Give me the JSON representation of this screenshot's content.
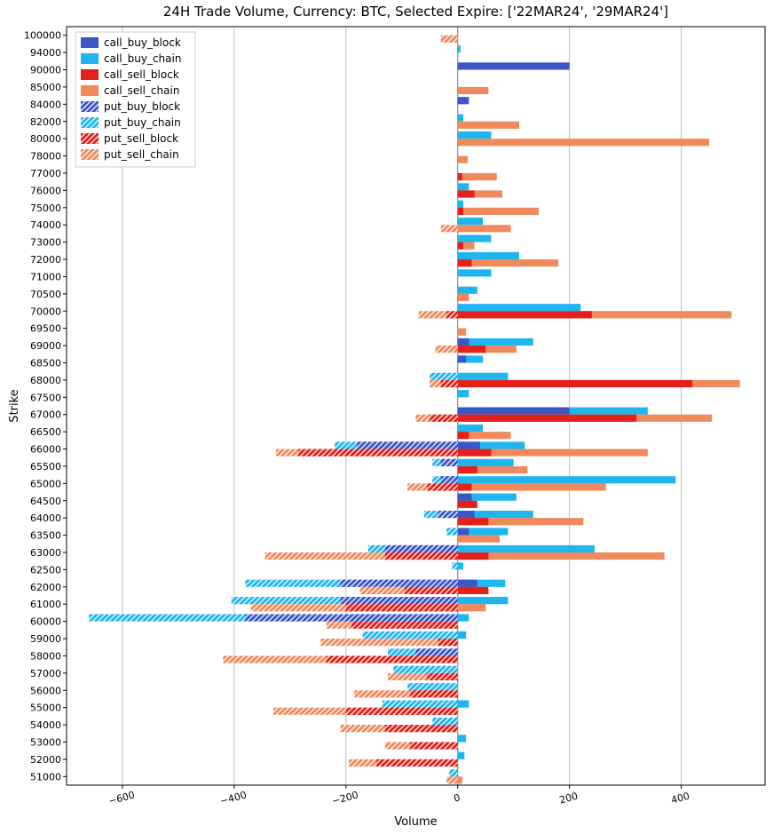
{
  "chart": {
    "type": "bar",
    "title": "24H Trade Volume, Currency: BTC, Selected Expire: ['22MAR24', '29MAR24']",
    "title_fontsize": 15,
    "xlabel": "Volume",
    "ylabel": "Strike",
    "label_fontsize": 13,
    "tick_fontsize": 11,
    "xlim": [
      -700,
      550
    ],
    "xtick_step": 200,
    "xticks": [
      -600,
      -400,
      -200,
      0,
      200,
      400
    ],
    "background_color": "#ffffff",
    "grid_color": "#b0b0b0",
    "bar_group_height": 20,
    "bar_sub_height": 9,
    "colors": {
      "call_buy_block": "#3b57c7",
      "call_buy_chain": "#1fb6f0",
      "call_sell_block": "#e3201b",
      "call_sell_chain": "#f08a5d",
      "put_buy_block": "#3b57c7",
      "put_buy_chain": "#1fb6f0",
      "put_sell_block": "#e3201b",
      "put_sell_chain": "#f08a5d",
      "hatch_stroke": "#ffffff"
    },
    "legend": {
      "items": [
        {
          "label": "call_buy_block",
          "fill": "#3b57c7",
          "hatched": false
        },
        {
          "label": "call_buy_chain",
          "fill": "#1fb6f0",
          "hatched": false
        },
        {
          "label": "call_sell_block",
          "fill": "#e3201b",
          "hatched": false
        },
        {
          "label": "call_sell_chain",
          "fill": "#f08a5d",
          "hatched": false
        },
        {
          "label": "put_buy_block",
          "fill": "#3b57c7",
          "hatched": true
        },
        {
          "label": "put_buy_chain",
          "fill": "#1fb6f0",
          "hatched": true
        },
        {
          "label": "put_sell_block",
          "fill": "#e3201b",
          "hatched": true
        },
        {
          "label": "put_sell_chain",
          "fill": "#f08a5d",
          "hatched": true
        }
      ]
    },
    "comment_series": "Per strike: call_buy [block,chain], call_sell [block,chain] on +x; put_buy [block,chain], put_sell [block,chain] on -x (given as positive magnitudes, rendered negative). Top sub-row = buy, bottom sub-row = sell.",
    "strikes": [
      {
        "strike": "100000",
        "call_buy": [
          0,
          0
        ],
        "call_sell": [
          0,
          0
        ],
        "put_buy": [
          0,
          0
        ],
        "put_sell": [
          0,
          30
        ]
      },
      {
        "strike": "94000",
        "call_buy": [
          0,
          5
        ],
        "call_sell": [
          0,
          0
        ],
        "put_buy": [
          0,
          0
        ],
        "put_sell": [
          0,
          0
        ]
      },
      {
        "strike": "90000",
        "call_buy": [
          200,
          20
        ],
        "call_sell": [
          0,
          0
        ],
        "put_buy": [
          0,
          0
        ],
        "put_sell": [
          0,
          0
        ]
      },
      {
        "strike": "85000",
        "call_buy": [
          0,
          0
        ],
        "call_sell": [
          0,
          55
        ],
        "put_buy": [
          0,
          0
        ],
        "put_sell": [
          0,
          0
        ]
      },
      {
        "strike": "84000",
        "call_buy": [
          20,
          0
        ],
        "call_sell": [
          0,
          0
        ],
        "put_buy": [
          0,
          0
        ],
        "put_sell": [
          0,
          0
        ]
      },
      {
        "strike": "82000",
        "call_buy": [
          0,
          10
        ],
        "call_sell": [
          0,
          110
        ],
        "put_buy": [
          0,
          0
        ],
        "put_sell": [
          0,
          0
        ]
      },
      {
        "strike": "80000",
        "call_buy": [
          0,
          60
        ],
        "call_sell": [
          0,
          450
        ],
        "put_buy": [
          0,
          0
        ],
        "put_sell": [
          0,
          0
        ]
      },
      {
        "strike": "78000",
        "call_buy": [
          0,
          0
        ],
        "call_sell": [
          0,
          18
        ],
        "put_buy": [
          0,
          0
        ],
        "put_sell": [
          0,
          0
        ]
      },
      {
        "strike": "77000",
        "call_buy": [
          0,
          0
        ],
        "call_sell": [
          8,
          70
        ],
        "put_buy": [
          0,
          0
        ],
        "put_sell": [
          0,
          0
        ]
      },
      {
        "strike": "76000",
        "call_buy": [
          0,
          20
        ],
        "call_sell": [
          30,
          80
        ],
        "put_buy": [
          0,
          0
        ],
        "put_sell": [
          0,
          0
        ]
      },
      {
        "strike": "75000",
        "call_buy": [
          0,
          10
        ],
        "call_sell": [
          10,
          145
        ],
        "put_buy": [
          0,
          0
        ],
        "put_sell": [
          0,
          0
        ]
      },
      {
        "strike": "74000",
        "call_buy": [
          0,
          45
        ],
        "call_sell": [
          0,
          95
        ],
        "put_buy": [
          0,
          0
        ],
        "put_sell": [
          0,
          30
        ]
      },
      {
        "strike": "73000",
        "call_buy": [
          0,
          60
        ],
        "call_sell": [
          10,
          30
        ],
        "put_buy": [
          0,
          0
        ],
        "put_sell": [
          0,
          0
        ]
      },
      {
        "strike": "72000",
        "call_buy": [
          0,
          110
        ],
        "call_sell": [
          25,
          180
        ],
        "put_buy": [
          0,
          0
        ],
        "put_sell": [
          0,
          0
        ]
      },
      {
        "strike": "71000",
        "call_buy": [
          0,
          60
        ],
        "call_sell": [
          0,
          0
        ],
        "put_buy": [
          0,
          0
        ],
        "put_sell": [
          0,
          0
        ]
      },
      {
        "strike": "70500",
        "call_buy": [
          0,
          35
        ],
        "call_sell": [
          0,
          20
        ],
        "put_buy": [
          0,
          0
        ],
        "put_sell": [
          0,
          0
        ]
      },
      {
        "strike": "70000",
        "call_buy": [
          0,
          220
        ],
        "call_sell": [
          240,
          490
        ],
        "put_buy": [
          0,
          0
        ],
        "put_sell": [
          20,
          70
        ]
      },
      {
        "strike": "69500",
        "call_buy": [
          0,
          0
        ],
        "call_sell": [
          0,
          15
        ],
        "put_buy": [
          0,
          0
        ],
        "put_sell": [
          0,
          0
        ]
      },
      {
        "strike": "69000",
        "call_buy": [
          20,
          135
        ],
        "call_sell": [
          50,
          105
        ],
        "put_buy": [
          0,
          0
        ],
        "put_sell": [
          0,
          40
        ]
      },
      {
        "strike": "68500",
        "call_buy": [
          15,
          45
        ],
        "call_sell": [
          0,
          0
        ],
        "put_buy": [
          0,
          0
        ],
        "put_sell": [
          0,
          0
        ]
      },
      {
        "strike": "68000",
        "call_buy": [
          0,
          90
        ],
        "call_sell": [
          420,
          505
        ],
        "put_buy": [
          0,
          50
        ],
        "put_sell": [
          30,
          50
        ]
      },
      {
        "strike": "67500",
        "call_buy": [
          0,
          20
        ],
        "call_sell": [
          0,
          0
        ],
        "put_buy": [
          0,
          0
        ],
        "put_sell": [
          0,
          0
        ]
      },
      {
        "strike": "67000",
        "call_buy": [
          200,
          340
        ],
        "call_sell": [
          320,
          455
        ],
        "put_buy": [
          0,
          0
        ],
        "put_sell": [
          50,
          75
        ]
      },
      {
        "strike": "66500",
        "call_buy": [
          0,
          45
        ],
        "call_sell": [
          20,
          95
        ],
        "put_buy": [
          0,
          0
        ],
        "put_sell": [
          0,
          0
        ]
      },
      {
        "strike": "66000",
        "call_buy": [
          40,
          120
        ],
        "call_sell": [
          60,
          340
        ],
        "put_buy": [
          180,
          220
        ],
        "put_sell": [
          285,
          325
        ]
      },
      {
        "strike": "65500",
        "call_buy": [
          0,
          100
        ],
        "call_sell": [
          35,
          125
        ],
        "put_buy": [
          30,
          45
        ],
        "put_sell": [
          0,
          0
        ]
      },
      {
        "strike": "65000",
        "call_buy": [
          0,
          390
        ],
        "call_sell": [
          25,
          265
        ],
        "put_buy": [
          30,
          45
        ],
        "put_sell": [
          55,
          90
        ]
      },
      {
        "strike": "64500",
        "call_buy": [
          25,
          105
        ],
        "call_sell": [
          35,
          0
        ],
        "put_buy": [
          0,
          0
        ],
        "put_sell": [
          0,
          0
        ]
      },
      {
        "strike": "64000",
        "call_buy": [
          30,
          135
        ],
        "call_sell": [
          55,
          225
        ],
        "put_buy": [
          35,
          60
        ],
        "put_sell": [
          0,
          0
        ]
      },
      {
        "strike": "63500",
        "call_buy": [
          20,
          90
        ],
        "call_sell": [
          0,
          75
        ],
        "put_buy": [
          0,
          20
        ],
        "put_sell": [
          0,
          0
        ]
      },
      {
        "strike": "63000",
        "call_buy": [
          0,
          245
        ],
        "call_sell": [
          55,
          370
        ],
        "put_buy": [
          130,
          160
        ],
        "put_sell": [
          130,
          345
        ]
      },
      {
        "strike": "62500",
        "call_buy": [
          0,
          10
        ],
        "call_sell": [
          0,
          0
        ],
        "put_buy": [
          0,
          10
        ],
        "put_sell": [
          0,
          0
        ]
      },
      {
        "strike": "62000",
        "call_buy": [
          35,
          85
        ],
        "call_sell": [
          55,
          0
        ],
        "put_buy": [
          210,
          380
        ],
        "put_sell": [
          95,
          175
        ]
      },
      {
        "strike": "61000",
        "call_buy": [
          0,
          90
        ],
        "call_sell": [
          0,
          50
        ],
        "put_buy": [
          210,
          405
        ],
        "put_sell": [
          200,
          370
        ]
      },
      {
        "strike": "60000",
        "call_buy": [
          0,
          20
        ],
        "call_sell": [
          0,
          0
        ],
        "put_buy": [
          380,
          660
        ],
        "put_sell": [
          190,
          235
        ]
      },
      {
        "strike": "59000",
        "call_buy": [
          0,
          15
        ],
        "call_sell": [
          0,
          0
        ],
        "put_buy": [
          0,
          170
        ],
        "put_sell": [
          35,
          245
        ]
      },
      {
        "strike": "58000",
        "call_buy": [
          0,
          0
        ],
        "call_sell": [
          0,
          0
        ],
        "put_buy": [
          75,
          125
        ],
        "put_sell": [
          235,
          420
        ]
      },
      {
        "strike": "57000",
        "call_buy": [
          0,
          0
        ],
        "call_sell": [
          0,
          0
        ],
        "put_buy": [
          0,
          115
        ],
        "put_sell": [
          55,
          125
        ]
      },
      {
        "strike": "56000",
        "call_buy": [
          0,
          0
        ],
        "call_sell": [
          0,
          0
        ],
        "put_buy": [
          0,
          90
        ],
        "put_sell": [
          85,
          185
        ]
      },
      {
        "strike": "55000",
        "call_buy": [
          0,
          20
        ],
        "call_sell": [
          0,
          0
        ],
        "put_buy": [
          0,
          135
        ],
        "put_sell": [
          200,
          330
        ]
      },
      {
        "strike": "54000",
        "call_buy": [
          0,
          0
        ],
        "call_sell": [
          0,
          0
        ],
        "put_buy": [
          0,
          45
        ],
        "put_sell": [
          130,
          210
        ]
      },
      {
        "strike": "53000",
        "call_buy": [
          0,
          15
        ],
        "call_sell": [
          0,
          0
        ],
        "put_buy": [
          0,
          0
        ],
        "put_sell": [
          85,
          130
        ]
      },
      {
        "strike": "52000",
        "call_buy": [
          0,
          12
        ],
        "call_sell": [
          0,
          0
        ],
        "put_buy": [
          0,
          0
        ],
        "put_sell": [
          145,
          195
        ]
      },
      {
        "strike": "51000",
        "call_buy": [
          0,
          0
        ],
        "call_sell": [
          0,
          8
        ],
        "put_buy": [
          0,
          15
        ],
        "put_sell": [
          0,
          20
        ]
      }
    ]
  }
}
